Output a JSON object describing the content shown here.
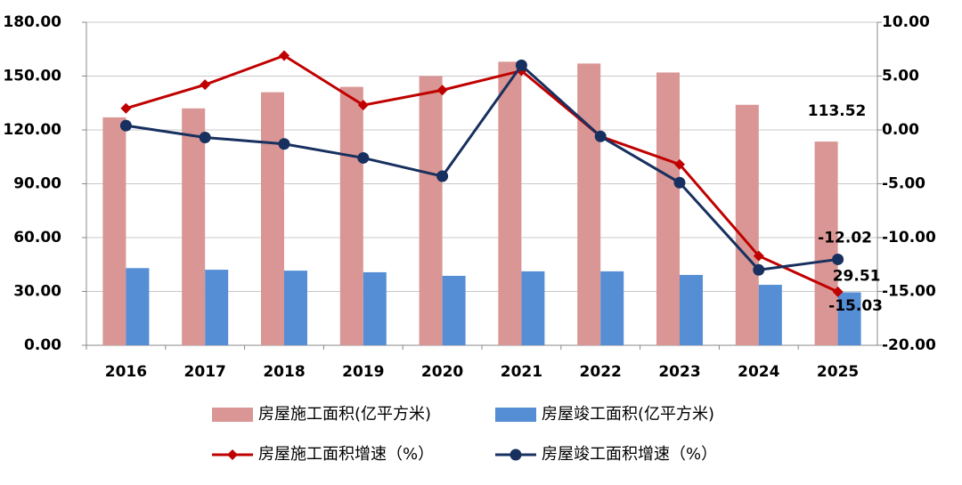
{
  "chart_data": {
    "type": "bar-line",
    "categories": [
      "2016",
      "2017",
      "2018",
      "2019",
      "2020",
      "2021",
      "2022",
      "2023",
      "2024",
      "2025"
    ],
    "series": [
      {
        "name": "房屋施工面积(亿平方米)",
        "type": "bar",
        "color": "#d99694",
        "values": [
          127,
          132,
          141,
          144,
          150,
          158,
          157,
          152,
          134,
          113.52
        ],
        "value_labels": [
          null,
          null,
          null,
          null,
          null,
          null,
          null,
          null,
          null,
          "113.52"
        ]
      },
      {
        "name": "房屋竣工面积(亿平方米)",
        "type": "bar",
        "color": "#558ed5",
        "values": [
          43,
          42.1,
          41.6,
          40.7,
          38.7,
          41.2,
          41.2,
          39.2,
          33.7,
          29.51
        ],
        "value_labels": [
          null,
          null,
          null,
          null,
          null,
          null,
          null,
          null,
          null,
          "29.51"
        ]
      },
      {
        "name": "房屋施工面积增速（%）",
        "type": "line",
        "axis": "y2",
        "color": "#c00000",
        "marker": "diamond",
        "values": [
          2.0,
          4.2,
          6.9,
          2.3,
          3.7,
          5.5,
          -0.6,
          -3.2,
          -11.7,
          -15.03
        ],
        "value_labels": [
          null,
          null,
          null,
          null,
          null,
          null,
          null,
          null,
          null,
          "-15.03"
        ]
      },
      {
        "name": "房屋竣工面积增速（%）",
        "type": "line",
        "axis": "y2",
        "color": "#17305f",
        "marker": "circle",
        "values": [
          0.4,
          -0.7,
          -1.3,
          -2.6,
          -4.3,
          6.0,
          -0.6,
          -4.9,
          -13.0,
          -12.02
        ],
        "value_labels": [
          null,
          null,
          null,
          null,
          null,
          null,
          null,
          null,
          null,
          "-12.02"
        ]
      }
    ],
    "ylim": [
      0,
      180
    ],
    "yticks": [
      {
        "value": 0,
        "label": "0.00"
      },
      {
        "value": 30,
        "label": "30.00"
      },
      {
        "value": 60,
        "label": "60.00"
      },
      {
        "value": 90,
        "label": "90.00"
      },
      {
        "value": 120,
        "label": "120.00"
      },
      {
        "value": 150,
        "label": "150.00"
      },
      {
        "value": 180,
        "label": "180.00"
      }
    ],
    "y2lim": [
      -20,
      10
    ],
    "y2ticks": [
      {
        "value": -20,
        "label": "-20.00"
      },
      {
        "value": -15,
        "label": "-15.00"
      },
      {
        "value": -10,
        "label": "-10.00"
      },
      {
        "value": -5,
        "label": "-5.00"
      },
      {
        "value": 0,
        "label": "0.00"
      },
      {
        "value": 5,
        "label": "5.00"
      },
      {
        "value": 10,
        "label": "10.00"
      }
    ],
    "grid": true,
    "legend": "bottom"
  }
}
